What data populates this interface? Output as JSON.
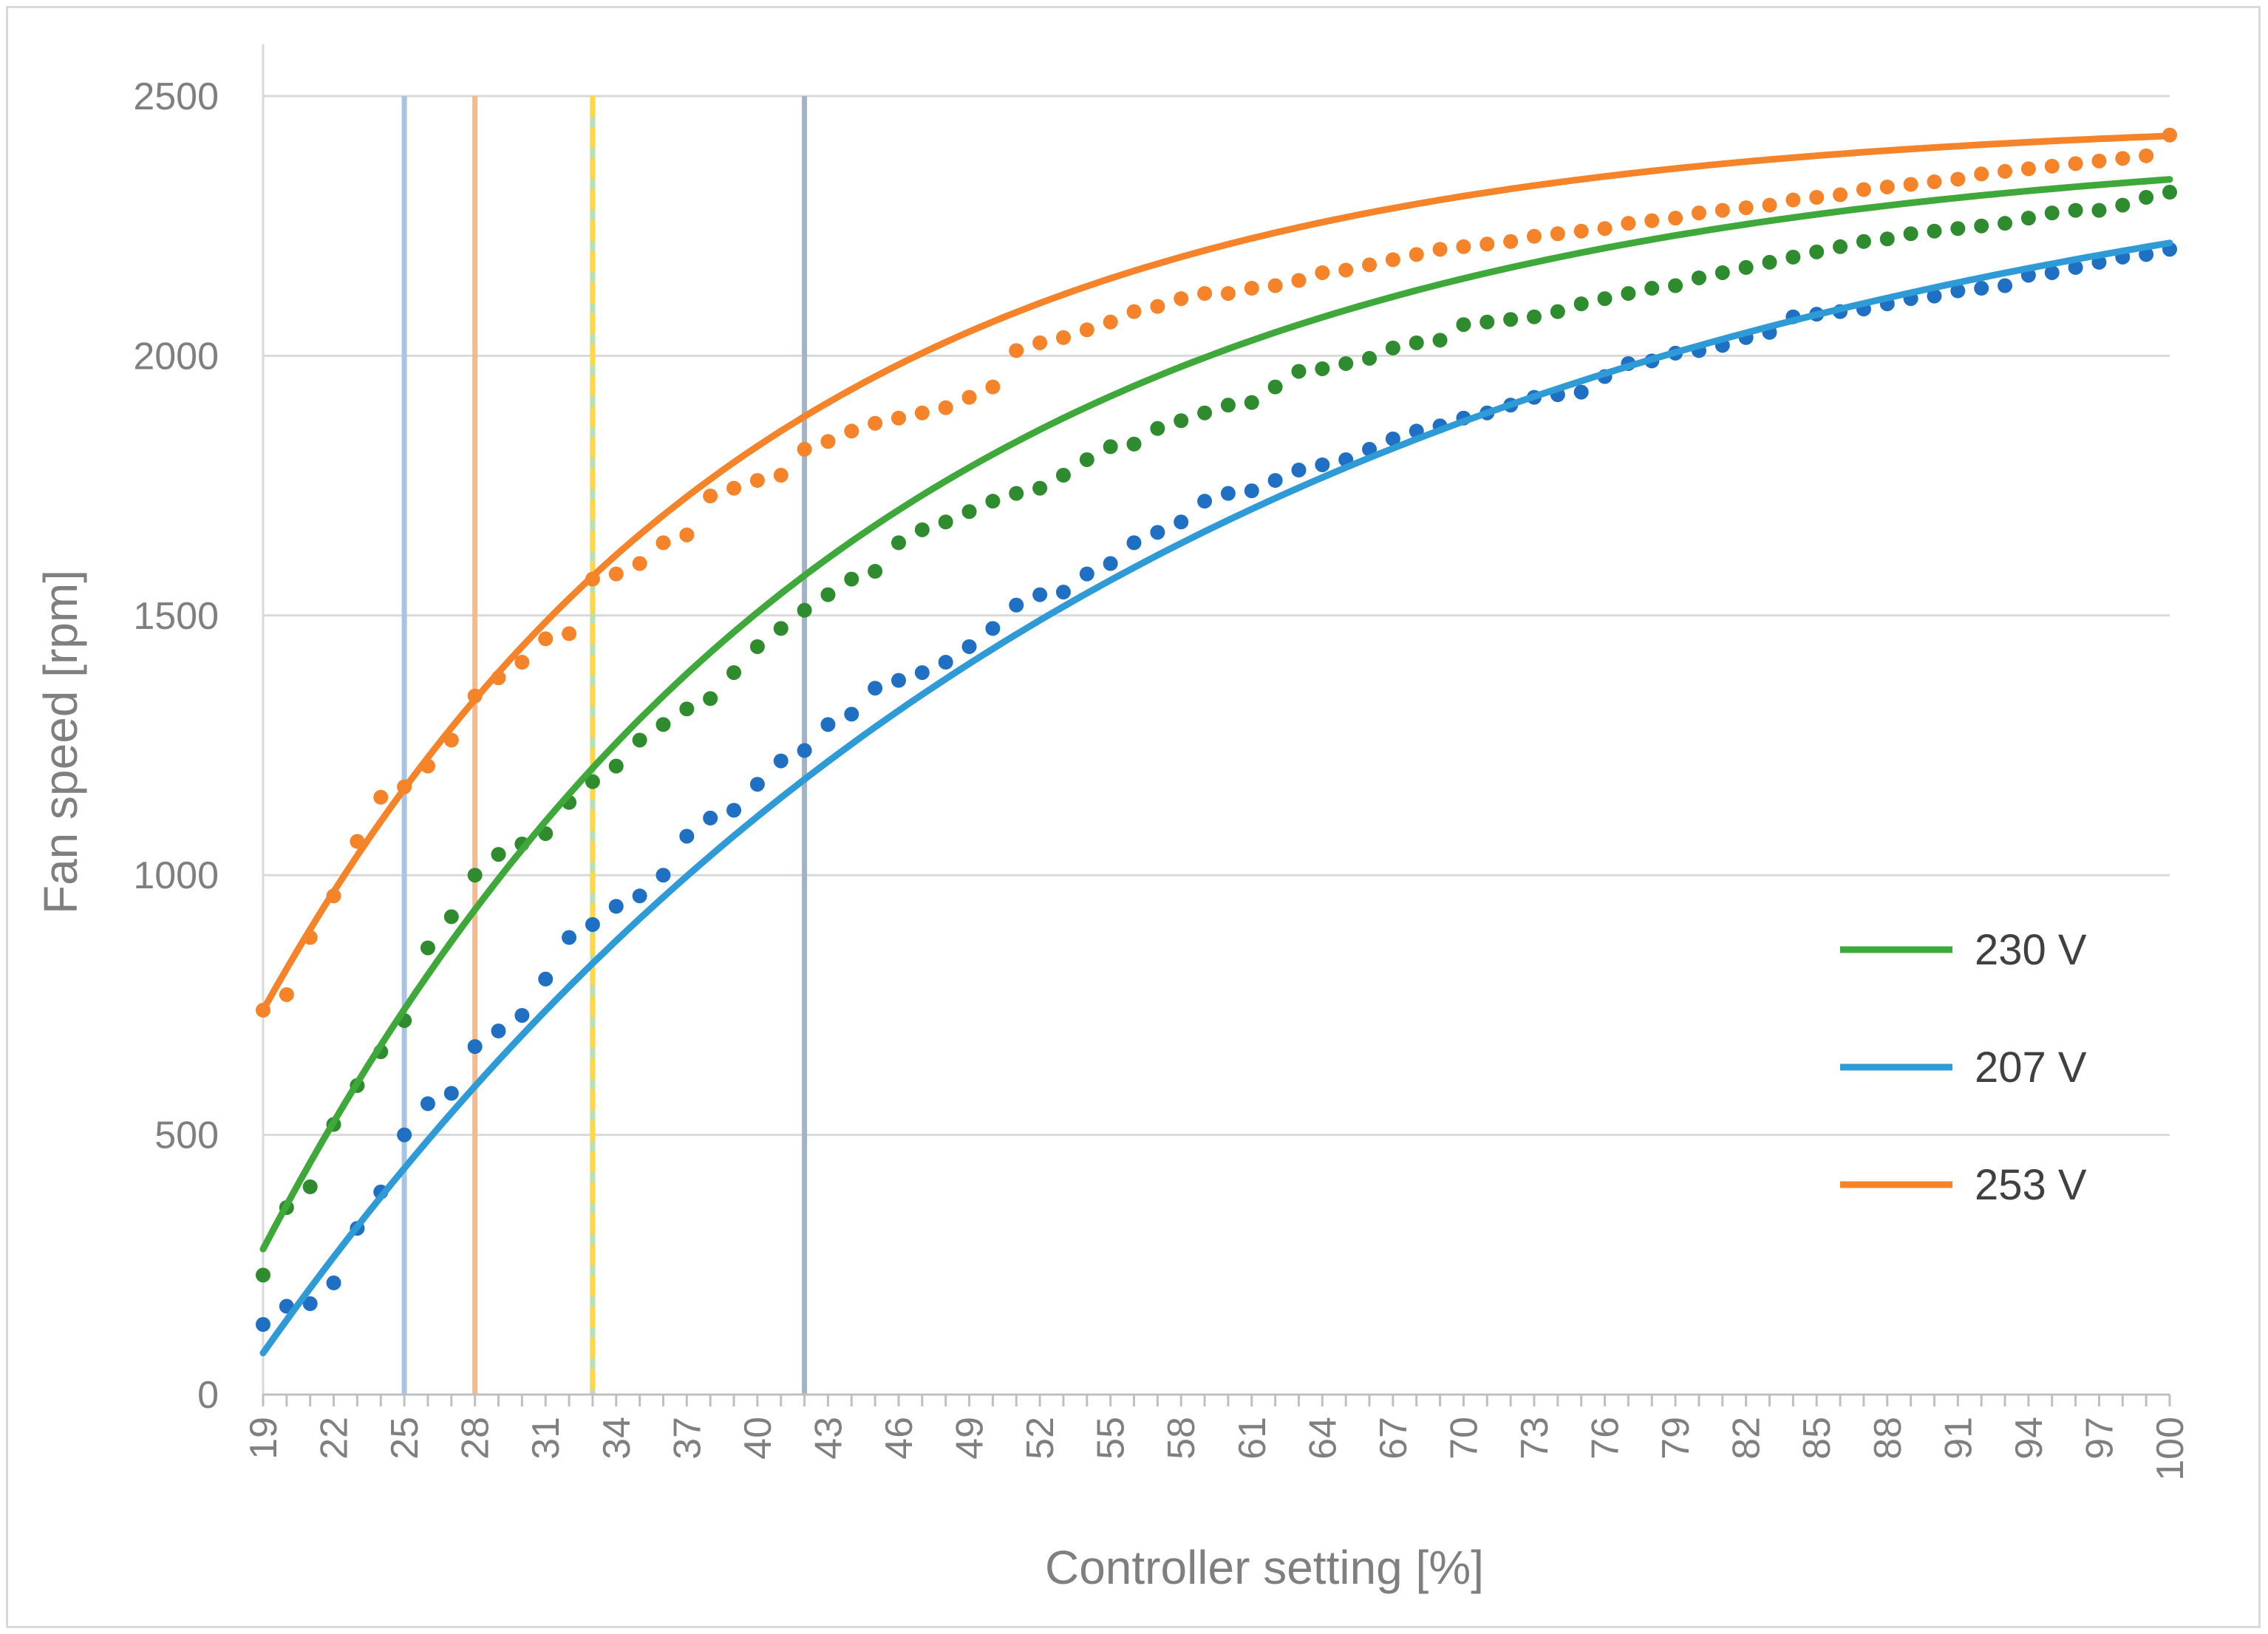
{
  "chart_data": {
    "type": "scatter",
    "xlabel": "Controller setting [%]",
    "ylabel": "Fan speed [rpm]",
    "xlim": [
      19,
      100
    ],
    "ylim": [
      0,
      2500
    ],
    "x_ticks": [
      19,
      22,
      25,
      28,
      31,
      34,
      37,
      40,
      43,
      46,
      49,
      52,
      55,
      58,
      61,
      64,
      67,
      70,
      73,
      76,
      79,
      82,
      85,
      88,
      91,
      94,
      97,
      100
    ],
    "y_ticks": [
      0,
      500,
      1000,
      1500,
      2000,
      2500
    ],
    "grid": "horizontal",
    "legend_position": "right",
    "series": [
      {
        "name": "230 V",
        "color": "#3ea83a",
        "marker_color": "#2e8b2e",
        "points": [
          [
            19,
            230
          ],
          [
            20,
            360
          ],
          [
            21,
            400
          ],
          [
            22,
            520
          ],
          [
            23,
            595
          ],
          [
            24,
            660
          ],
          [
            25,
            720
          ],
          [
            26,
            860
          ],
          [
            27,
            920
          ],
          [
            28,
            1000
          ],
          [
            29,
            1040
          ],
          [
            30,
            1060
          ],
          [
            31,
            1080
          ],
          [
            32,
            1140
          ],
          [
            33,
            1180
          ],
          [
            34,
            1210
          ],
          [
            35,
            1260
          ],
          [
            36,
            1290
          ],
          [
            37,
            1320
          ],
          [
            38,
            1340
          ],
          [
            39,
            1390
          ],
          [
            40,
            1440
          ],
          [
            41,
            1475
          ],
          [
            42,
            1510
          ],
          [
            43,
            1540
          ],
          [
            44,
            1570
          ],
          [
            45,
            1585
          ],
          [
            46,
            1640
          ],
          [
            47,
            1665
          ],
          [
            48,
            1680
          ],
          [
            49,
            1700
          ],
          [
            50,
            1720
          ],
          [
            51,
            1735
          ],
          [
            52,
            1745
          ],
          [
            53,
            1770
          ],
          [
            54,
            1800
          ],
          [
            55,
            1825
          ],
          [
            56,
            1830
          ],
          [
            57,
            1860
          ],
          [
            58,
            1875
          ],
          [
            59,
            1890
          ],
          [
            60,
            1905
          ],
          [
            61,
            1910
          ],
          [
            62,
            1940
          ],
          [
            63,
            1970
          ],
          [
            64,
            1975
          ],
          [
            65,
            1985
          ],
          [
            66,
            1995
          ],
          [
            67,
            2015
          ],
          [
            68,
            2025
          ],
          [
            69,
            2030
          ],
          [
            70,
            2060
          ],
          [
            71,
            2065
          ],
          [
            72,
            2070
          ],
          [
            73,
            2075
          ],
          [
            74,
            2085
          ],
          [
            75,
            2100
          ],
          [
            76,
            2110
          ],
          [
            77,
            2120
          ],
          [
            78,
            2130
          ],
          [
            79,
            2135
          ],
          [
            80,
            2150
          ],
          [
            81,
            2160
          ],
          [
            82,
            2170
          ],
          [
            83,
            2180
          ],
          [
            84,
            2190
          ],
          [
            85,
            2200
          ],
          [
            86,
            2210
          ],
          [
            87,
            2220
          ],
          [
            88,
            2225
          ],
          [
            89,
            2235
          ],
          [
            90,
            2240
          ],
          [
            91,
            2245
          ],
          [
            92,
            2250
          ],
          [
            93,
            2255
          ],
          [
            94,
            2265
          ],
          [
            95,
            2275
          ],
          [
            96,
            2280
          ],
          [
            97,
            2280
          ],
          [
            98,
            2290
          ],
          [
            99,
            2305
          ],
          [
            100,
            2315
          ]
        ]
      },
      {
        "name": "207 V",
        "color": "#2e9ad6",
        "marker_color": "#1f6fc2",
        "points": [
          [
            19,
            135
          ],
          [
            20,
            170
          ],
          [
            21,
            175
          ],
          [
            22,
            215
          ],
          [
            23,
            320
          ],
          [
            24,
            390
          ],
          [
            25,
            500
          ],
          [
            26,
            560
          ],
          [
            27,
            580
          ],
          [
            28,
            670
          ],
          [
            29,
            700
          ],
          [
            30,
            730
          ],
          [
            31,
            800
          ],
          [
            32,
            880
          ],
          [
            33,
            905
          ],
          [
            34,
            940
          ],
          [
            35,
            960
          ],
          [
            36,
            1000
          ],
          [
            37,
            1075
          ],
          [
            38,
            1110
          ],
          [
            39,
            1125
          ],
          [
            40,
            1175
          ],
          [
            41,
            1220
          ],
          [
            42,
            1240
          ],
          [
            43,
            1290
          ],
          [
            44,
            1310
          ],
          [
            45,
            1360
          ],
          [
            46,
            1375
          ],
          [
            47,
            1390
          ],
          [
            48,
            1410
          ],
          [
            49,
            1440
          ],
          [
            50,
            1475
          ],
          [
            51,
            1520
          ],
          [
            52,
            1540
          ],
          [
            53,
            1545
          ],
          [
            54,
            1580
          ],
          [
            55,
            1600
          ],
          [
            56,
            1640
          ],
          [
            57,
            1660
          ],
          [
            58,
            1680
          ],
          [
            59,
            1720
          ],
          [
            60,
            1735
          ],
          [
            61,
            1740
          ],
          [
            62,
            1760
          ],
          [
            63,
            1780
          ],
          [
            64,
            1790
          ],
          [
            65,
            1800
          ],
          [
            66,
            1820
          ],
          [
            67,
            1840
          ],
          [
            68,
            1855
          ],
          [
            69,
            1865
          ],
          [
            70,
            1880
          ],
          [
            71,
            1890
          ],
          [
            72,
            1905
          ],
          [
            73,
            1920
          ],
          [
            74,
            1925
          ],
          [
            75,
            1930
          ],
          [
            76,
            1960
          ],
          [
            77,
            1985
          ],
          [
            78,
            1990
          ],
          [
            79,
            2005
          ],
          [
            80,
            2010
          ],
          [
            81,
            2020
          ],
          [
            82,
            2035
          ],
          [
            83,
            2045
          ],
          [
            84,
            2075
          ],
          [
            85,
            2080
          ],
          [
            86,
            2085
          ],
          [
            87,
            2090
          ],
          [
            88,
            2100
          ],
          [
            89,
            2110
          ],
          [
            90,
            2115
          ],
          [
            91,
            2125
          ],
          [
            92,
            2130
          ],
          [
            93,
            2135
          ],
          [
            94,
            2155
          ],
          [
            95,
            2160
          ],
          [
            96,
            2170
          ],
          [
            97,
            2180
          ],
          [
            98,
            2190
          ],
          [
            99,
            2195
          ],
          [
            100,
            2205
          ]
        ]
      },
      {
        "name": "253 V",
        "color": "#f5832a",
        "marker_color": "#f5832a",
        "points": [
          [
            19,
            740
          ],
          [
            20,
            770
          ],
          [
            21,
            880
          ],
          [
            22,
            960
          ],
          [
            23,
            1065
          ],
          [
            24,
            1150
          ],
          [
            25,
            1170
          ],
          [
            26,
            1210
          ],
          [
            27,
            1260
          ],
          [
            28,
            1345
          ],
          [
            29,
            1380
          ],
          [
            30,
            1410
          ],
          [
            31,
            1455
          ],
          [
            32,
            1465
          ],
          [
            33,
            1570
          ],
          [
            34,
            1580
          ],
          [
            35,
            1600
          ],
          [
            36,
            1640
          ],
          [
            37,
            1655
          ],
          [
            38,
            1730
          ],
          [
            39,
            1745
          ],
          [
            40,
            1760
          ],
          [
            41,
            1770
          ],
          [
            42,
            1820
          ],
          [
            43,
            1835
          ],
          [
            44,
            1855
          ],
          [
            45,
            1870
          ],
          [
            46,
            1880
          ],
          [
            47,
            1890
          ],
          [
            48,
            1900
          ],
          [
            49,
            1920
          ],
          [
            50,
            1940
          ],
          [
            51,
            2010
          ],
          [
            52,
            2025
          ],
          [
            53,
            2035
          ],
          [
            54,
            2050
          ],
          [
            55,
            2065
          ],
          [
            56,
            2085
          ],
          [
            57,
            2095
          ],
          [
            58,
            2110
          ],
          [
            59,
            2120
          ],
          [
            60,
            2120
          ],
          [
            61,
            2130
          ],
          [
            62,
            2135
          ],
          [
            63,
            2145
          ],
          [
            64,
            2160
          ],
          [
            65,
            2165
          ],
          [
            66,
            2175
          ],
          [
            67,
            2185
          ],
          [
            68,
            2195
          ],
          [
            69,
            2205
          ],
          [
            70,
            2210
          ],
          [
            71,
            2215
          ],
          [
            72,
            2220
          ],
          [
            73,
            2230
          ],
          [
            74,
            2235
          ],
          [
            75,
            2240
          ],
          [
            76,
            2245
          ],
          [
            77,
            2255
          ],
          [
            78,
            2260
          ],
          [
            79,
            2265
          ],
          [
            80,
            2275
          ],
          [
            81,
            2280
          ],
          [
            82,
            2285
          ],
          [
            83,
            2290
          ],
          [
            84,
            2300
          ],
          [
            85,
            2305
          ],
          [
            86,
            2310
          ],
          [
            87,
            2320
          ],
          [
            88,
            2325
          ],
          [
            89,
            2330
          ],
          [
            90,
            2335
          ],
          [
            91,
            2340
          ],
          [
            92,
            2350
          ],
          [
            93,
            2355
          ],
          [
            94,
            2360
          ],
          [
            95,
            2365
          ],
          [
            96,
            2370
          ],
          [
            97,
            2375
          ],
          [
            98,
            2380
          ],
          [
            99,
            2385
          ],
          [
            100,
            2425
          ]
        ]
      }
    ],
    "trendlines": [
      {
        "series": "230 V",
        "color": "#3ea83a",
        "y0": 280,
        "ymax": 2420,
        "k": 0.0405
      },
      {
        "series": "207 V",
        "color": "#2e9ad6",
        "y0": 80,
        "ymax": 2500,
        "k": 0.0265
      },
      {
        "series": "253 V",
        "color": "#f5832a",
        "y0": 740,
        "ymax": 2460,
        "k": 0.0475
      }
    ],
    "reference_lines": [
      {
        "x": 25,
        "color": "#a9c4e3",
        "style": "solid"
      },
      {
        "x": 28,
        "color": "#f7b98a",
        "style": "solid"
      },
      {
        "x": 33,
        "color": "#b8e0b0",
        "style": "solid"
      },
      {
        "x": 33,
        "color": "#ffd54a",
        "style": "dashed"
      },
      {
        "x": 42,
        "color": "#a3b3c6",
        "style": "solid"
      }
    ],
    "legend": [
      {
        "label": "230 V",
        "color": "#3ea83a"
      },
      {
        "label": "207 V",
        "color": "#2e9ad6"
      },
      {
        "label": "253 V",
        "color": "#f5832a"
      }
    ]
  }
}
